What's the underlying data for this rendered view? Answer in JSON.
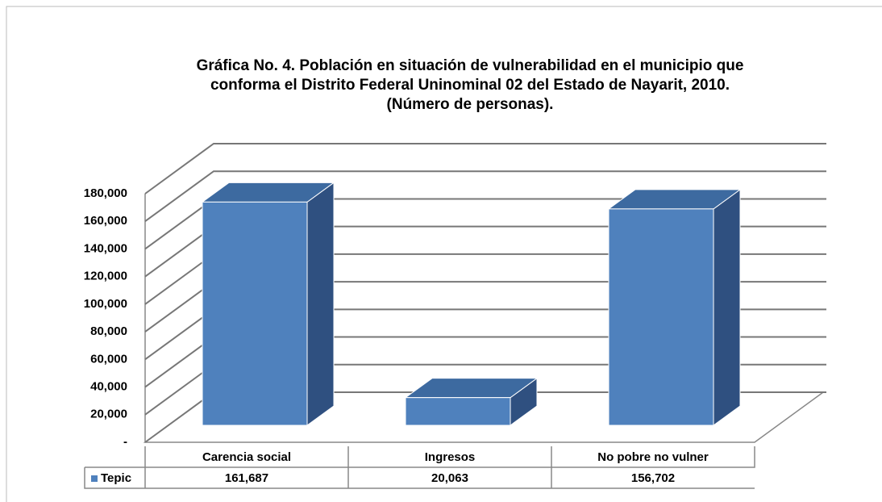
{
  "chart_data": {
    "type": "bar3d",
    "title": [
      "Gráfica No. 4. Población en situación de vulnerabilidad en el municipio que",
      "conforma el Distrito Federal Uninominal 02 del Estado de Nayarit, 2010.",
      "(Número de personas)."
    ],
    "categories": [
      "Carencia social",
      "Ingresos",
      "No pobre  no vulner"
    ],
    "series": [
      {
        "name": "Tepic",
        "color": "#4f81bd",
        "values": [
          161687,
          20063,
          156702
        ],
        "value_labels": [
          "161,687",
          "20,063",
          "156,702"
        ]
      }
    ],
    "ylim": [
      0,
      180000
    ],
    "yticks": [
      {
        "value": 0,
        "label": "-"
      },
      {
        "value": 20000,
        "label": "20,000"
      },
      {
        "value": 40000,
        "label": "40,000"
      },
      {
        "value": 60000,
        "label": "60,000"
      },
      {
        "value": 80000,
        "label": "80,000"
      },
      {
        "value": 100000,
        "label": "100,000"
      },
      {
        "value": 120000,
        "label": "120,000"
      },
      {
        "value": 140000,
        "label": "140,000"
      },
      {
        "value": 160000,
        "label": "160,000"
      },
      {
        "value": 180000,
        "label": "180,000"
      }
    ],
    "grid": true,
    "data_table": true
  }
}
